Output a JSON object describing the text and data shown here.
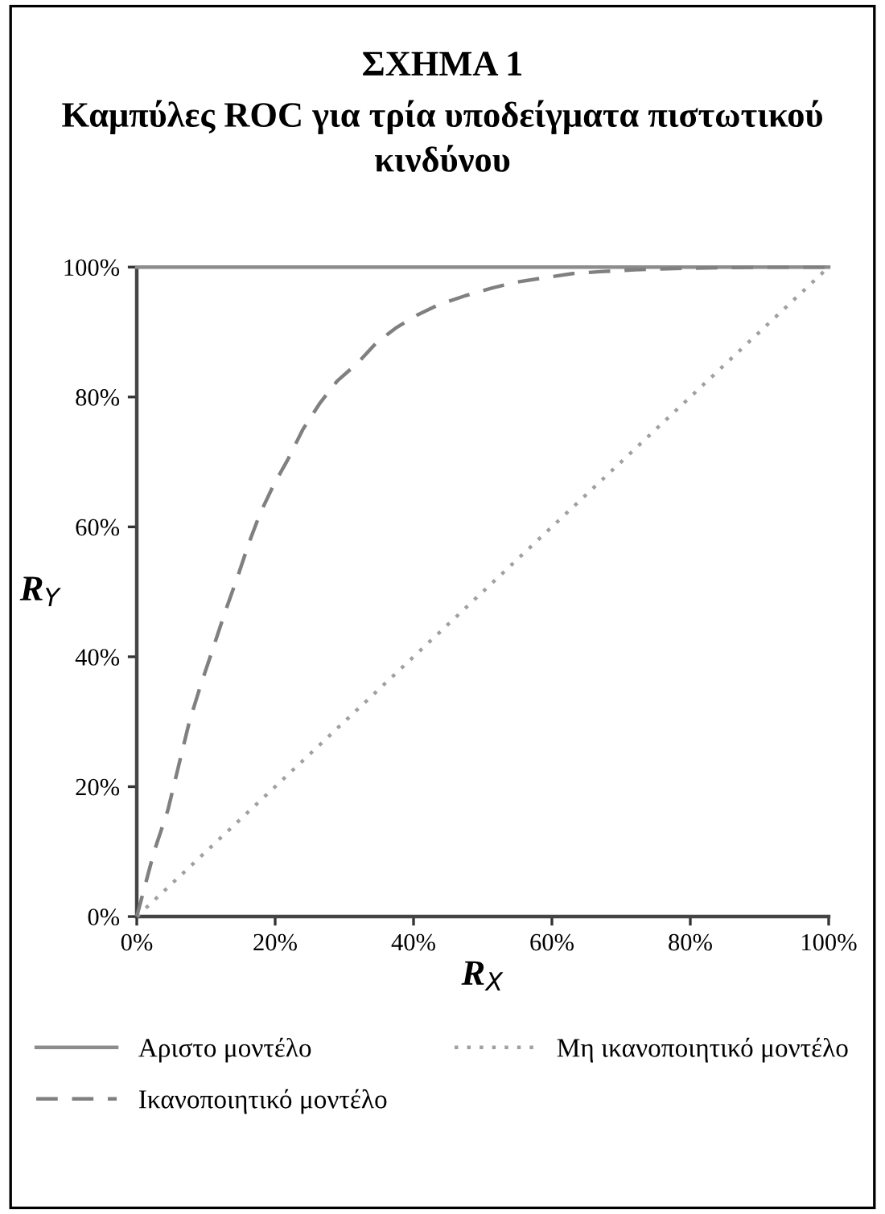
{
  "chart_data": {
    "type": "line",
    "title": "ΣΧΗΜΑ 1",
    "subtitle": "Καμπύλες ROC για τρία υποδείγματα πιστωτικού κινδύνου",
    "xlabel": "R$_{X}$",
    "ylabel": "R$_{Y}$",
    "xlim": [
      0,
      100
    ],
    "ylim": [
      0,
      100
    ],
    "xticks": [
      {
        "value": 0,
        "label": "0%"
      },
      {
        "value": 20,
        "label": "20%"
      },
      {
        "value": 40,
        "label": "40%"
      },
      {
        "value": 60,
        "label": "60%"
      },
      {
        "value": 80,
        "label": "80%"
      },
      {
        "value": 100,
        "label": "100%"
      }
    ],
    "yticks": [
      {
        "value": 0,
        "label": "0%"
      },
      {
        "value": 20,
        "label": "20%"
      },
      {
        "value": 40,
        "label": "40%"
      },
      {
        "value": 60,
        "label": "60%"
      },
      {
        "value": 80,
        "label": "80%"
      },
      {
        "value": 100,
        "label": "100%"
      }
    ],
    "grid": false,
    "legend": "bottom",
    "marker": "none",
    "series": [
      {
        "name": "Αριστο μοντέλο",
        "color": "#8c8c8c",
        "line_style": "solid",
        "x": [
          0,
          100
        ],
        "values": [
          100,
          100
        ]
      },
      {
        "name": "Μη ικανοποιητικό μοντέλο",
        "color": "#a0a0a0",
        "line_style": "dotted",
        "x": [
          0,
          100
        ],
        "values": [
          0,
          100
        ]
      },
      {
        "name": "Ικανοποιητικό μοντέλο",
        "color": "#808080",
        "line_style": "dashed",
        "x": [
          0,
          1,
          2.5,
          4.5,
          6,
          7.6,
          9.2,
          10.8,
          12.8,
          14.7,
          16.2,
          17.8,
          19.8,
          21.8,
          24,
          26.5,
          29,
          32,
          34.5,
          37.4,
          40.5,
          43.6,
          47.5,
          51.4,
          55,
          59.2,
          63,
          67,
          72,
          78.7,
          85,
          92,
          100
        ],
        "values": [
          0,
          4,
          10,
          16.4,
          23,
          30,
          35.5,
          40.6,
          47,
          52.7,
          57.5,
          62,
          66.5,
          70.3,
          75,
          79.1,
          82.5,
          85.3,
          88.2,
          90.6,
          92.6,
          94.2,
          95.6,
          96.8,
          97.7,
          98.4,
          99,
          99.3,
          99.6,
          99.8,
          99.9,
          100,
          100
        ]
      }
    ]
  }
}
